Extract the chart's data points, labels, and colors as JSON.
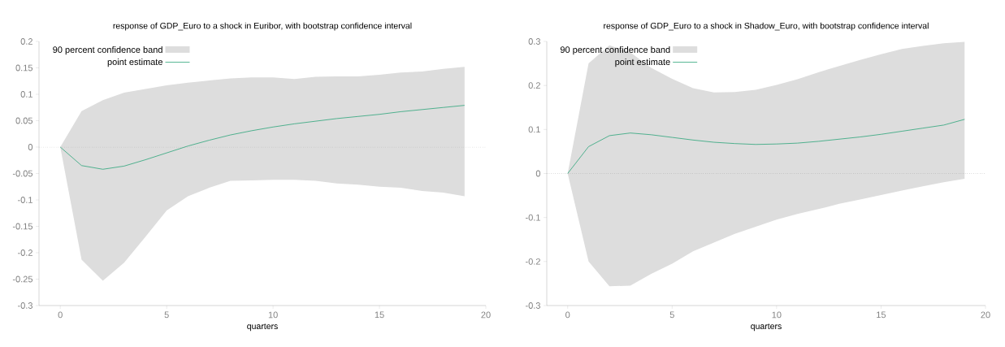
{
  "chart_data": [
    {
      "type": "line",
      "title": "response of GDP_Euro to a shock in Euribor, with bootstrap confidence interval",
      "xlabel": "quarters",
      "xlim": [
        -1,
        20
      ],
      "xticks": [
        0,
        5,
        10,
        15,
        20
      ],
      "ylim": [
        -0.3,
        0.2
      ],
      "yticks": [
        -0.3,
        -0.25,
        -0.2,
        -0.15,
        -0.1,
        -0.05,
        0,
        0.05,
        0.1,
        0.15,
        0.2
      ],
      "legend": "top left",
      "annotations": [
        "90 percent confidence band"
      ],
      "ref_lines": [
        {
          "axis": "y",
          "value": 0,
          "line_style": "dotted"
        }
      ],
      "x": [
        0,
        1,
        2,
        3,
        4,
        5,
        6,
        7,
        8,
        9,
        10,
        11,
        12,
        13,
        14,
        15,
        16,
        17,
        18,
        19
      ],
      "series": [
        {
          "name": "point estimate",
          "color": "#2ca57a",
          "values": [
            0,
            -0.035,
            -0.042,
            -0.036,
            -0.024,
            -0.011,
            0.002,
            0.013,
            0.023,
            0.031,
            0.038,
            0.044,
            0.049,
            0.054,
            0.058,
            0.062,
            0.067,
            0.071,
            0.075,
            0.079
          ],
          "lower": [
            0,
            -0.213,
            -0.253,
            -0.219,
            -0.17,
            -0.12,
            -0.093,
            -0.077,
            -0.064,
            -0.063,
            -0.062,
            -0.062,
            -0.064,
            -0.069,
            -0.071,
            -0.075,
            -0.077,
            -0.083,
            -0.086,
            -0.093
          ],
          "upper": [
            0,
            0.068,
            0.089,
            0.103,
            0.11,
            0.117,
            0.122,
            0.126,
            0.13,
            0.132,
            0.132,
            0.129,
            0.133,
            0.134,
            0.134,
            0.137,
            0.141,
            0.143,
            0.148,
            0.152
          ]
        }
      ]
    },
    {
      "type": "line",
      "title": "response of GDP_Euro to a shock in Shadow_Euro, with bootstrap confidence interval",
      "xlabel": "quarters",
      "xlim": [
        -1,
        20
      ],
      "xticks": [
        0,
        5,
        10,
        15,
        20
      ],
      "ylim": [
        -0.3,
        0.3
      ],
      "yticks": [
        -0.3,
        -0.2,
        -0.1,
        0,
        0.1,
        0.2,
        0.3
      ],
      "legend": "top left",
      "annotations": [
        "90 percent confidence band"
      ],
      "ref_lines": [
        {
          "axis": "y",
          "value": 0,
          "line_style": "dotted"
        }
      ],
      "x": [
        0,
        1,
        2,
        3,
        4,
        5,
        6,
        7,
        8,
        9,
        10,
        11,
        12,
        13,
        14,
        15,
        16,
        17,
        18,
        19
      ],
      "series": [
        {
          "name": "point estimate",
          "color": "#2ca57a",
          "values": [
            0,
            0.061,
            0.086,
            0.092,
            0.088,
            0.082,
            0.076,
            0.071,
            0.068,
            0.066,
            0.067,
            0.069,
            0.073,
            0.078,
            0.083,
            0.089,
            0.096,
            0.103,
            0.11,
            0.123
          ],
          "lower": [
            0,
            -0.2,
            -0.256,
            -0.255,
            -0.228,
            -0.205,
            -0.177,
            -0.157,
            -0.137,
            -0.121,
            -0.105,
            -0.092,
            -0.081,
            -0.069,
            -0.059,
            -0.049,
            -0.039,
            -0.029,
            -0.02,
            -0.012
          ],
          "upper": [
            0,
            0.25,
            0.291,
            0.275,
            0.24,
            0.215,
            0.194,
            0.184,
            0.185,
            0.19,
            0.201,
            0.214,
            0.23,
            0.244,
            0.258,
            0.271,
            0.283,
            0.29,
            0.296,
            0.299
          ]
        }
      ]
    }
  ]
}
